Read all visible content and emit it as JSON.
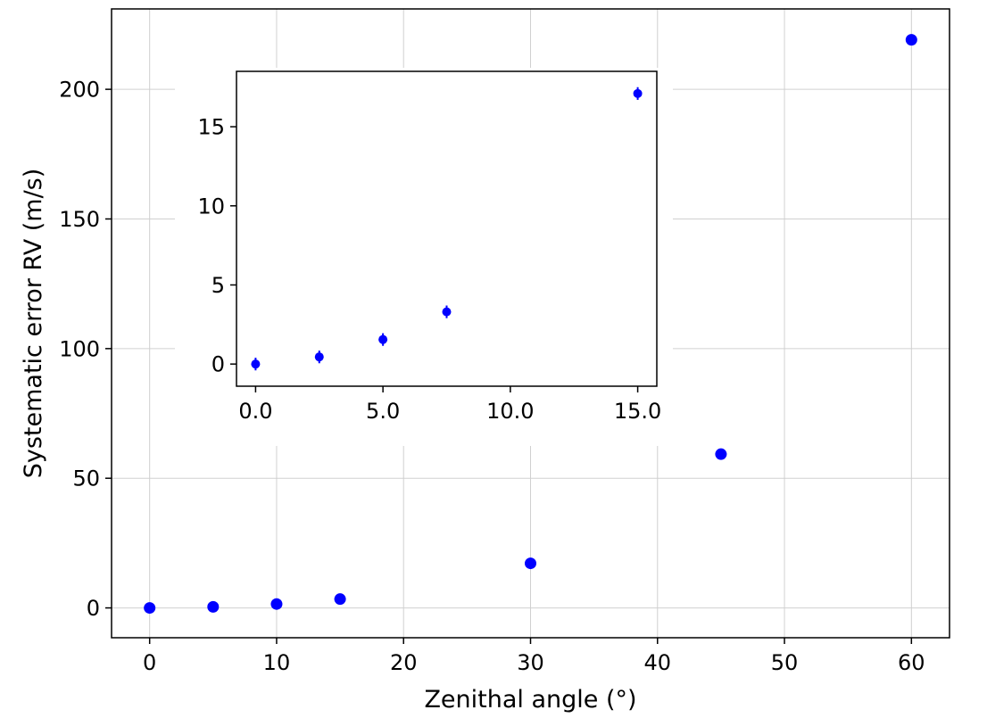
{
  "chart_data": [
    {
      "id": "main",
      "type": "scatter",
      "xlabel": "Zenithal angle (°)",
      "ylabel": "Systematic error RV (m/s)",
      "xlim": [
        -3,
        63
      ],
      "ylim": [
        -11.5,
        231
      ],
      "xticks": [
        0,
        10,
        20,
        30,
        40,
        50,
        60
      ],
      "xtick_labels": [
        "0",
        "10",
        "20",
        "30",
        "40",
        "50",
        "60"
      ],
      "yticks": [
        0,
        50,
        100,
        150,
        200
      ],
      "ytick_labels": [
        "0",
        "50",
        "100",
        "150",
        "200"
      ],
      "grid": true,
      "color": "#0000ff",
      "x": [
        0,
        5,
        10,
        15,
        30,
        45,
        60
      ],
      "y": [
        0,
        0.4,
        1.5,
        3.4,
        17.2,
        59.3,
        219.1
      ]
    },
    {
      "id": "inset",
      "type": "scatter",
      "xlim": [
        -0.75,
        15.75
      ],
      "ylim": [
        -1.4,
        18.5
      ],
      "xticks": [
        0,
        5,
        10,
        15
      ],
      "xtick_labels": [
        "0.0",
        "5.0",
        "10.0",
        "15.0"
      ],
      "yticks": [
        0,
        5,
        10,
        15
      ],
      "ytick_labels": [
        "0",
        "5",
        "10",
        "15"
      ],
      "grid": false,
      "color": "#0000ff",
      "x": [
        0,
        2.5,
        5,
        7.5,
        15
      ],
      "y": [
        0,
        0.45,
        1.55,
        3.3,
        17.1
      ],
      "yerr": [
        0.4,
        0.4,
        0.4,
        0.4,
        0.4
      ]
    }
  ]
}
